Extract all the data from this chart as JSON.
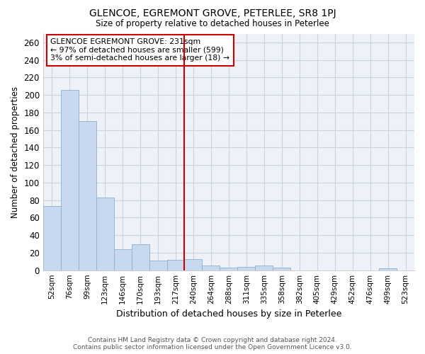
{
  "title": "GLENCOE, EGREMONT GROVE, PETERLEE, SR8 1PJ",
  "subtitle": "Size of property relative to detached houses in Peterlee",
  "xlabel": "Distribution of detached houses by size in Peterlee",
  "ylabel": "Number of detached properties",
  "footer_line1": "Contains HM Land Registry data © Crown copyright and database right 2024.",
  "footer_line2": "Contains public sector information licensed under the Open Government Licence v3.0.",
  "categories": [
    "52sqm",
    "76sqm",
    "99sqm",
    "123sqm",
    "146sqm",
    "170sqm",
    "193sqm",
    "217sqm",
    "240sqm",
    "264sqm",
    "288sqm",
    "311sqm",
    "335sqm",
    "358sqm",
    "382sqm",
    "405sqm",
    "429sqm",
    "452sqm",
    "476sqm",
    "499sqm",
    "523sqm"
  ],
  "values": [
    73,
    206,
    170,
    83,
    24,
    30,
    11,
    12,
    13,
    5,
    3,
    4,
    5,
    3,
    0,
    0,
    0,
    0,
    0,
    2,
    0
  ],
  "bar_color": "#c8d8ee",
  "bar_edge_color": "#8ab0d0",
  "grid_color": "#c8d4e4",
  "background_color": "#ffffff",
  "plot_bg_color": "#eef2f8",
  "vline_color": "#cc0000",
  "vline_index": 8,
  "annotation_text": "GLENCOE EGREMONT GROVE: 231sqm\n← 97% of detached houses are smaller (599)\n3% of semi-detached houses are larger (18) →",
  "annotation_box_color": "#ffffff",
  "annotation_box_edge": "#cc0000",
  "ylim": [
    0,
    270
  ],
  "yticks": [
    0,
    20,
    40,
    60,
    80,
    100,
    120,
    140,
    160,
    180,
    200,
    220,
    240,
    260
  ]
}
